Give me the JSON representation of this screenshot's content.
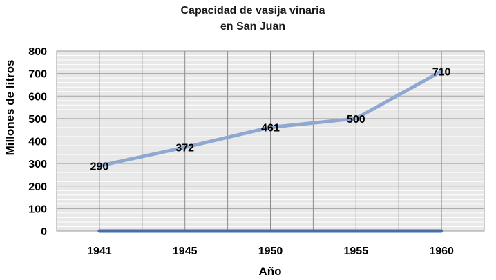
{
  "chart_data": {
    "type": "line",
    "title_lines": [
      "Capacidad de vasija vinaria",
      "en San Juan"
    ],
    "xlabel": "Año",
    "ylabel": "Millones de litros",
    "categories": [
      "1941",
      "1945",
      "1950",
      "1955",
      "1960"
    ],
    "series": [
      {
        "values": [
          290,
          372,
          461,
          500,
          710
        ],
        "color": "#8fa8d2"
      },
      {
        "values": [
          0,
          0,
          0,
          0,
          0
        ],
        "color": "#4a6da8"
      }
    ],
    "data_labels": [
      "290",
      "372",
      "461",
      "500",
      "710"
    ],
    "ylim": [
      0,
      800
    ],
    "yticks": [
      0,
      100,
      200,
      300,
      400,
      500,
      600,
      700,
      800
    ],
    "grid": true,
    "plot_background": "#e8e8e8",
    "legend": "none"
  }
}
